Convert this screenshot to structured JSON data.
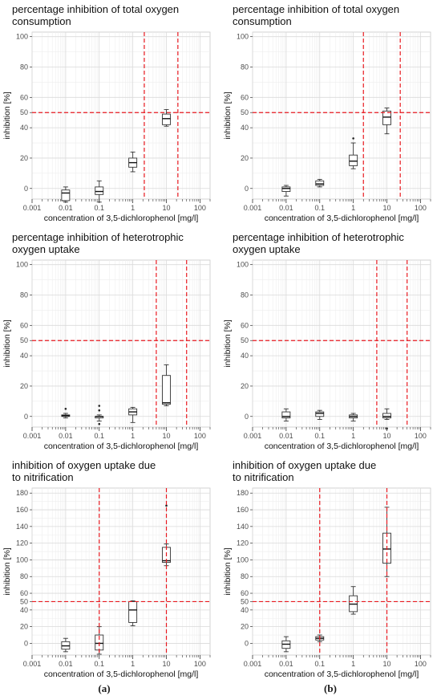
{
  "figure": {
    "panel_labels": [
      "(a)",
      "(b)"
    ],
    "grid": true,
    "reference_line_color": "#e8191f"
  },
  "chart_data": [
    {
      "type": "boxplot",
      "column": "a",
      "title": [
        "percentage inhibition of total oxygen",
        "consumption"
      ],
      "xlabel": "concentration of 3,5-dichlorophenol [mg/l]",
      "ylabel": "inhibition [%]",
      "x_scale": "log",
      "xlim": [
        0.001,
        200
      ],
      "ylim": [
        -7,
        103
      ],
      "x_tick_labels": [
        "0.001",
        "0.01",
        "0.1",
        "1",
        "10",
        "100"
      ],
      "x_ticks": [
        0.001,
        0.01,
        0.1,
        1,
        10,
        100
      ],
      "y_ticks": [
        0,
        20,
        40,
        50,
        60,
        80,
        100
      ],
      "y_tick_labels": [
        "0",
        "20",
        "40",
        "50",
        "60",
        "80",
        "100"
      ],
      "hlines": [
        50
      ],
      "vlines": [
        2.2,
        22
      ],
      "boxes": [
        {
          "x": 0.01,
          "min": -9,
          "q1": -8,
          "median": -3,
          "q3": -1,
          "max": 1,
          "outliers": []
        },
        {
          "x": 0.1,
          "min": -9,
          "q1": -4,
          "median": -2,
          "q3": 1,
          "max": 5,
          "outliers": []
        },
        {
          "x": 1,
          "min": 11,
          "q1": 14,
          "median": 17,
          "q3": 20,
          "max": 24,
          "outliers": []
        },
        {
          "x": 10,
          "min": 41,
          "q1": 42,
          "median": 46,
          "q3": 49,
          "max": 52,
          "outliers": []
        }
      ]
    },
    {
      "type": "boxplot",
      "column": "b",
      "title": [
        "percentage inhibition of total oxygen",
        "consumption"
      ],
      "xlabel": "concentration of 3,5-dichlorophenol [mg/l]",
      "ylabel": "inhibition [%]",
      "x_scale": "log",
      "xlim": [
        0.001,
        200
      ],
      "ylim": [
        -7,
        103
      ],
      "x_tick_labels": [
        "0.001",
        "0.01",
        "0.1",
        "1",
        "10",
        "100"
      ],
      "x_ticks": [
        0.001,
        0.01,
        0.1,
        1,
        10,
        100
      ],
      "y_ticks": [
        0,
        20,
        40,
        50,
        60,
        80,
        100
      ],
      "y_tick_labels": [
        "0",
        "20",
        "40",
        "50",
        "60",
        "80",
        "100"
      ],
      "hlines": [
        50
      ],
      "vlines": [
        2,
        25
      ],
      "boxes": [
        {
          "x": 0.01,
          "min": -5,
          "q1": -2,
          "median": 0,
          "q3": 1,
          "max": 2,
          "outliers": []
        },
        {
          "x": 0.1,
          "min": 1,
          "q1": 2,
          "median": 3,
          "q3": 5,
          "max": 6,
          "outliers": []
        },
        {
          "x": 1,
          "min": 13,
          "q1": 15,
          "median": 18,
          "q3": 22,
          "max": 30,
          "outliers": [
            33
          ]
        },
        {
          "x": 10,
          "min": 36,
          "q1": 42,
          "median": 47,
          "q3": 51,
          "max": 53,
          "outliers": []
        }
      ]
    },
    {
      "type": "boxplot",
      "column": "a",
      "title": [
        "percentage inhibition of heterotrophic",
        "oxygen uptake"
      ],
      "xlabel": "concentration of 3,5-dichlorophenol [mg/l]",
      "ylabel": "inhibition [%]",
      "x_scale": "log",
      "xlim": [
        0.001,
        200
      ],
      "ylim": [
        -7,
        103
      ],
      "x_tick_labels": [
        "0.001",
        "0.01",
        "0.1",
        "1",
        "10",
        "100"
      ],
      "x_ticks": [
        0.001,
        0.01,
        0.1,
        1,
        10,
        100
      ],
      "y_ticks": [
        0,
        20,
        40,
        50,
        60,
        80,
        100
      ],
      "y_tick_labels": [
        "0",
        "20",
        "40",
        "50",
        "60",
        "80",
        "100"
      ],
      "hlines": [
        50
      ],
      "vlines": [
        5,
        40
      ],
      "boxes": [
        {
          "x": 0.01,
          "min": -1,
          "q1": 0,
          "median": 0.5,
          "q3": 1,
          "max": 2,
          "outliers": [
            5
          ]
        },
        {
          "x": 0.1,
          "min": -3,
          "q1": -1,
          "median": 0,
          "q3": 0,
          "max": 1,
          "outliers": [
            7,
            4,
            -5
          ]
        },
        {
          "x": 1,
          "min": -4,
          "q1": 1,
          "median": 3,
          "q3": 5,
          "max": 6,
          "outliers": []
        },
        {
          "x": 10,
          "min": 7,
          "q1": 8,
          "median": 9,
          "q3": 27,
          "max": 34,
          "outliers": []
        }
      ]
    },
    {
      "type": "boxplot",
      "column": "b",
      "title": [
        "percentage inhibition of heterotrophic",
        "oxygen uptake"
      ],
      "xlabel": "concentration of 3,5-dichlorophenol [mg/l]",
      "ylabel": "inhibition [%]",
      "x_scale": "log",
      "xlim": [
        0.001,
        200
      ],
      "ylim": [
        -7,
        103
      ],
      "x_tick_labels": [
        "0.001",
        "0.01",
        "0.1",
        "1",
        "10",
        "100"
      ],
      "x_ticks": [
        0.001,
        0.01,
        0.1,
        1,
        10,
        100
      ],
      "y_ticks": [
        0,
        20,
        40,
        50,
        60,
        80,
        100
      ],
      "y_tick_labels": [
        "0",
        "20",
        "40",
        "50",
        "60",
        "80",
        "100"
      ],
      "hlines": [
        50
      ],
      "vlines": [
        5,
        40
      ],
      "boxes": [
        {
          "x": 0.01,
          "min": -3,
          "q1": -1,
          "median": 0,
          "q3": 3,
          "max": 5,
          "outliers": []
        },
        {
          "x": 0.1,
          "min": -2,
          "q1": 0,
          "median": 2,
          "q3": 3,
          "max": 4,
          "outliers": []
        },
        {
          "x": 1,
          "min": -3,
          "q1": -1,
          "median": 0,
          "q3": 1,
          "max": 2,
          "outliers": []
        },
        {
          "x": 10,
          "min": -2,
          "q1": -1,
          "median": 0,
          "q3": 2,
          "max": 5,
          "outliers": [
            -8
          ]
        }
      ]
    },
    {
      "type": "boxplot",
      "column": "a",
      "title": [
        "inhibition of oxygen uptake due",
        "to nitrification"
      ],
      "xlabel": "concentration of 3,5-dichlorophenol [mg/l]",
      "ylabel": "inhibition [%]",
      "x_scale": "log",
      "xlim": [
        0.001,
        200
      ],
      "ylim": [
        -14,
        186
      ],
      "x_tick_labels": [
        "0.001",
        "0.01",
        "0.1",
        "1",
        "10",
        "100"
      ],
      "x_ticks": [
        0.001,
        0.01,
        0.1,
        1,
        10,
        100
      ],
      "y_ticks": [
        0,
        20,
        40,
        50,
        60,
        80,
        100,
        120,
        140,
        160,
        180
      ],
      "y_tick_labels": [
        "0",
        "20",
        "40",
        "50",
        "60",
        "80",
        "100",
        "120",
        "140",
        "160",
        "180"
      ],
      "hlines": [
        50
      ],
      "vlines": [
        0.1,
        10
      ],
      "boxes": [
        {
          "x": 0.01,
          "min": -10,
          "q1": -7,
          "median": -3,
          "q3": 2,
          "max": 6,
          "outliers": []
        },
        {
          "x": 0.1,
          "min": -13,
          "q1": -8,
          "median": 0,
          "q3": 10,
          "max": 20,
          "outliers": []
        },
        {
          "x": 1,
          "min": 21,
          "q1": 25,
          "median": 40,
          "q3": 50,
          "max": 51,
          "outliers": []
        },
        {
          "x": 10,
          "min": 93,
          "q1": 97,
          "median": 99,
          "q3": 115,
          "max": 119,
          "outliers": [
            165
          ]
        }
      ]
    },
    {
      "type": "boxplot",
      "column": "b",
      "title": [
        "inhibition of oxygen uptake due",
        "to nitrification"
      ],
      "xlabel": "concentration of 3,5-dichlorophenol [mg/l]",
      "ylabel": "inhibition [%]",
      "x_scale": "log",
      "xlim": [
        0.001,
        200
      ],
      "ylim": [
        -14,
        186
      ],
      "x_tick_labels": [
        "0.001",
        "0.01",
        "0.1",
        "1",
        "10",
        "100"
      ],
      "x_ticks": [
        0.001,
        0.01,
        0.1,
        1,
        10,
        100
      ],
      "y_ticks": [
        0,
        20,
        40,
        50,
        60,
        80,
        100,
        120,
        140,
        160,
        180
      ],
      "y_tick_labels": [
        "0",
        "20",
        "40",
        "50",
        "60",
        "80",
        "100",
        "120",
        "140",
        "160",
        "180"
      ],
      "hlines": [
        50
      ],
      "vlines": [
        0.1,
        10
      ],
      "boxes": [
        {
          "x": 0.01,
          "min": -10,
          "q1": -6,
          "median": -1,
          "q3": 3,
          "max": 8,
          "outliers": []
        },
        {
          "x": 0.1,
          "min": 2,
          "q1": 4,
          "median": 6,
          "q3": 8,
          "max": 10,
          "outliers": []
        },
        {
          "x": 1,
          "min": 35,
          "q1": 38,
          "median": 47,
          "q3": 57,
          "max": 68,
          "outliers": []
        },
        {
          "x": 10,
          "min": 80,
          "q1": 96,
          "median": 113,
          "q3": 132,
          "max": 163,
          "outliers": []
        }
      ]
    }
  ]
}
